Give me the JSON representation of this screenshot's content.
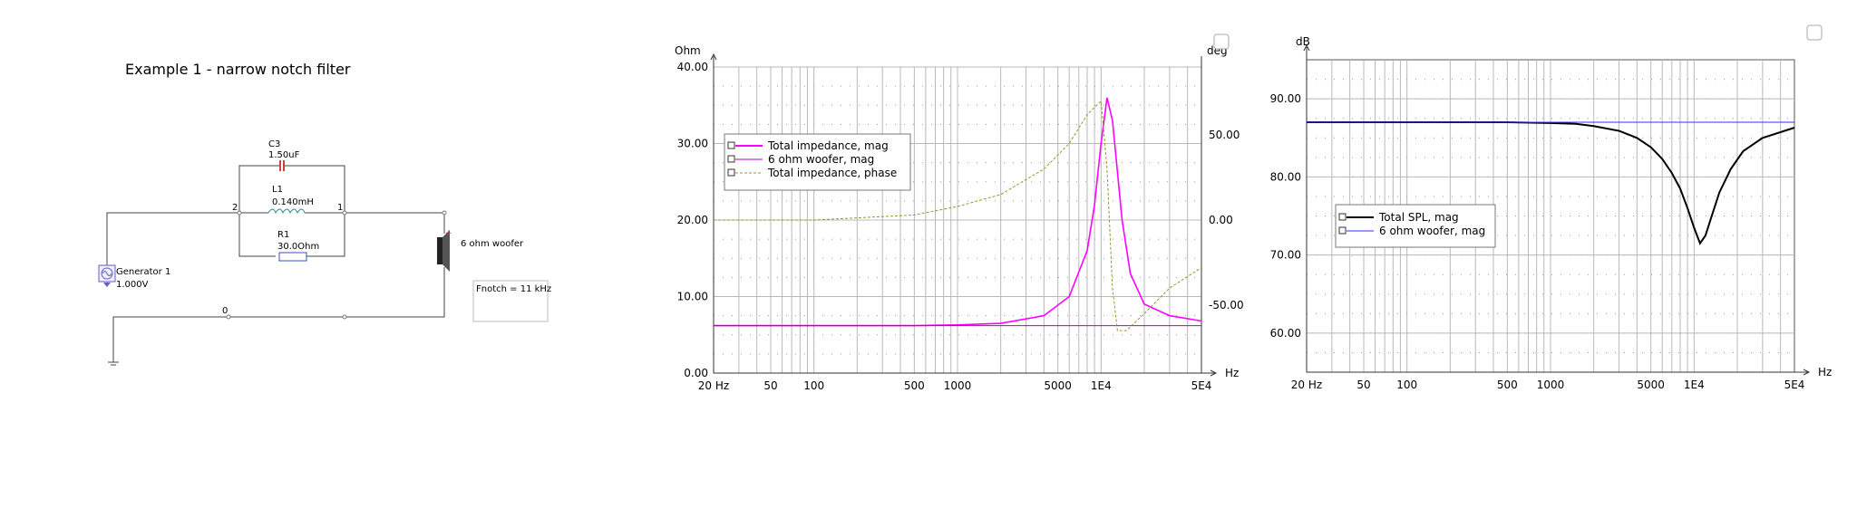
{
  "schematic": {
    "title": "Example 1 - narrow notch filter",
    "c3_name": "C3",
    "c3_value": "1.50uF",
    "l1_name": "L1",
    "l1_value": "0.140mH",
    "r1_name": "R1",
    "r1_value": "30.0Ohm",
    "node_2": "2",
    "node_1": "1",
    "node_0": "0",
    "generator_name": "Generator 1",
    "generator_value": "1.000V",
    "woofer_name": "6 ohm woofer",
    "note": "Fnotch = 11 kHz"
  },
  "impedance_chart": {
    "left_unit": "Ohm",
    "right_unit": "deg",
    "x_unit": "Hz",
    "legend": [
      "Total impedance, mag",
      "6 ohm woofer, mag",
      "Total impedance, phase"
    ],
    "colors": {
      "total_mag": "#ff00ff",
      "woofer_mag": "#b000c0",
      "phase": "#8a9a30"
    }
  },
  "spl_chart": {
    "y_unit": "dB",
    "x_unit": "Hz",
    "legend": [
      "Total SPL, mag",
      "6 ohm woofer, mag"
    ],
    "colors": {
      "total": "#000000",
      "woofer": "#3030ff"
    }
  },
  "chart_data": [
    {
      "type": "line",
      "x_scale": "log",
      "xlim": [
        20,
        50000
      ],
      "ylim": [
        0,
        40
      ],
      "y2lim": [
        -90,
        90
      ],
      "yticks": [
        "0.00",
        "10.00",
        "20.00",
        "30.00",
        "40.00"
      ],
      "y2ticks": [
        "50.00",
        "0.00",
        "-50.00"
      ],
      "xticks": [
        "20 Hz",
        "50",
        "100",
        "500",
        "1000",
        "5000",
        "1E4",
        "5E4"
      ],
      "series": [
        {
          "name": "Total impedance, mag",
          "axis": "left",
          "x": [
            20,
            100,
            500,
            1000,
            2000,
            4000,
            6000,
            8000,
            9000,
            10000,
            11000,
            12000,
            14000,
            16000,
            20000,
            30000,
            50000
          ],
          "y": [
            6.2,
            6.2,
            6.2,
            6.3,
            6.5,
            7.5,
            10,
            16,
            22,
            30,
            36,
            33,
            20,
            13,
            9,
            7.5,
            6.8
          ]
        },
        {
          "name": "6 ohm woofer, mag",
          "axis": "left",
          "x": [
            20,
            50000
          ],
          "y": [
            6.2,
            6.2
          ]
        },
        {
          "name": "Total impedance, phase",
          "axis": "right",
          "x": [
            20,
            100,
            500,
            1000,
            2000,
            4000,
            6000,
            8000,
            10000,
            11000,
            12000,
            13000,
            15000,
            20000,
            30000,
            50000
          ],
          "y": [
            0,
            0,
            3,
            8,
            15,
            30,
            45,
            62,
            70,
            30,
            -40,
            -65,
            -65,
            -55,
            -40,
            -28
          ]
        }
      ]
    },
    {
      "type": "line",
      "x_scale": "log",
      "xlim": [
        20,
        50000
      ],
      "ylim": [
        55,
        95
      ],
      "yticks": [
        "60.00",
        "70.00",
        "80.00",
        "90.00"
      ],
      "xticks": [
        "20 Hz",
        "50",
        "100",
        "500",
        "1000",
        "5000",
        "1E4",
        "5E4"
      ],
      "series": [
        {
          "name": "Total SPL, mag",
          "x": [
            20,
            100,
            500,
            1000,
            1500,
            2000,
            3000,
            4000,
            5000,
            6000,
            7000,
            8000,
            9000,
            10000,
            11000,
            12000,
            13000,
            15000,
            18000,
            22000,
            30000,
            50000
          ],
          "y": [
            87,
            87,
            87,
            86.9,
            86.8,
            86.5,
            85.9,
            85,
            83.8,
            82.3,
            80.5,
            78.5,
            76,
            73.5,
            71.5,
            72.5,
            74.5,
            78,
            81,
            83.3,
            85,
            86.3
          ]
        },
        {
          "name": "6 ohm woofer, mag",
          "x": [
            20,
            50000
          ],
          "y": [
            87,
            87
          ]
        }
      ]
    }
  ]
}
